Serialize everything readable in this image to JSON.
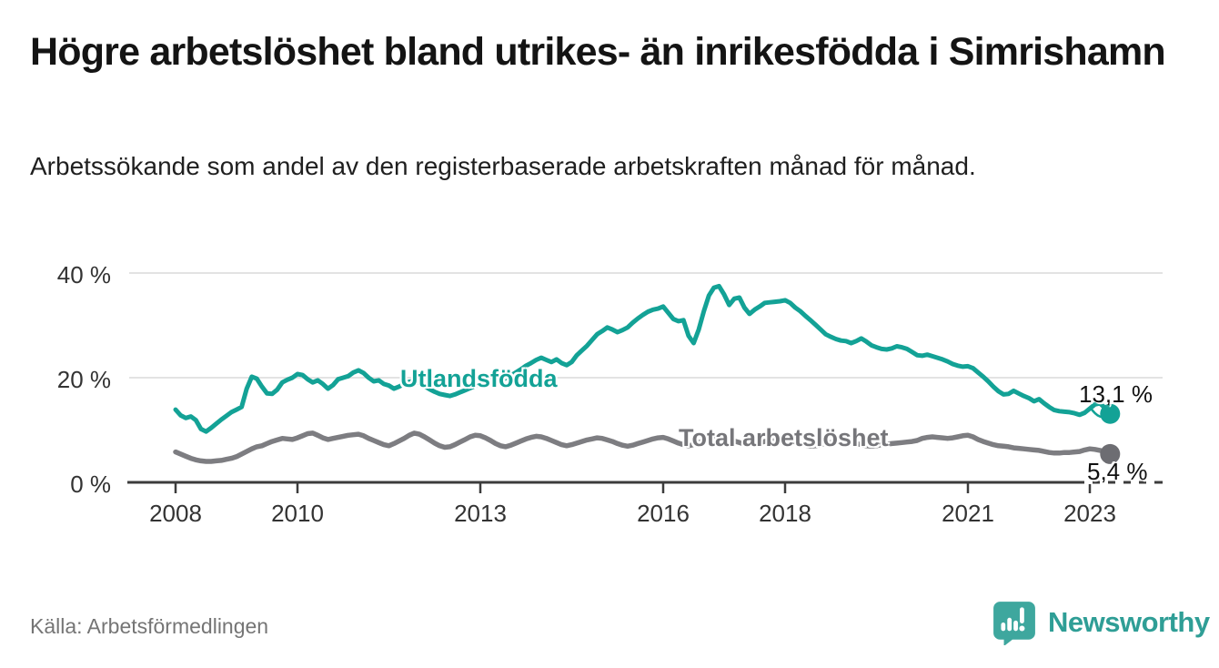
{
  "header": {
    "title": "Högre arbetslöshet bland utrikes- än inrikesfödda i Simrishamn",
    "subtitle": "Arbetssökande som andel av den registerbaserade arbetskraften månad för månad."
  },
  "labels": {
    "y_axis": [
      "40 %",
      "20 %",
      "0 %"
    ],
    "series_utlandsfodda": "Utlandsfödda",
    "series_total": "Total arbetslöshet",
    "end_value_utlandsfodda": "13,1 %",
    "end_value_total": "5,4 %"
  },
  "footer": {
    "source": "Källa: Arbetsförmedlingen",
    "brand": "Newsworthy"
  },
  "colors": {
    "accent_teal": "#13a296",
    "line_gray": "#7d7d81",
    "dot_gray": "#6d6d72",
    "grid": "#e3e3e3",
    "axis": "#3c3c3c",
    "logo_teal": "#3ea79e",
    "logo_text_teal": "#2f9e96"
  },
  "chart_data": {
    "type": "line",
    "title": "Högre arbetslöshet bland utrikes- än inrikesfödda i Simrishamn",
    "subtitle": "Arbetssökande som andel av den registerbaserade arbetskraften månad för månad.",
    "source": "Källa: Arbetsförmedlingen",
    "unit": "%",
    "frequency": "monthly",
    "x_start": "2008-01",
    "x_end": "2023-05",
    "x_ticks": [
      2008,
      2010,
      2013,
      2016,
      2018,
      2021,
      2023
    ],
    "y_ticks": [
      0,
      20,
      40
    ],
    "ylim": [
      0,
      43
    ],
    "grid": "horizontal",
    "legend_position": "inline-labels",
    "series": [
      {
        "name": "Utlandsfödda",
        "color": "#13a296",
        "end_label": "13,1 %",
        "end_value": 13.1,
        "values": [
          13.9,
          12.8,
          12.3,
          12.6,
          11.9,
          10.2,
          9.7,
          10.4,
          11.2,
          12.0,
          12.7,
          13.4,
          13.9,
          14.4,
          17.9,
          20.2,
          19.8,
          18.3,
          17.0,
          16.9,
          17.7,
          19.1,
          19.6,
          20.0,
          20.7,
          20.5,
          19.7,
          19.1,
          19.5,
          18.8,
          17.9,
          18.6,
          19.7,
          20.0,
          20.3,
          21.0,
          21.4,
          20.9,
          20.0,
          19.3,
          19.5,
          18.8,
          18.5,
          17.9,
          18.3,
          18.8,
          19.2,
          19.4,
          19.0,
          18.4,
          17.8,
          17.3,
          16.9,
          16.7,
          16.5,
          16.8,
          17.2,
          17.6,
          18.0,
          18.4,
          18.8,
          19.2,
          19.5,
          19.8,
          19.5,
          19.9,
          20.4,
          21.0,
          21.6,
          22.3,
          22.8,
          23.4,
          23.8,
          23.4,
          23.0,
          23.5,
          22.8,
          22.4,
          23.0,
          24.3,
          25.2,
          26.1,
          27.2,
          28.3,
          28.9,
          29.6,
          29.2,
          28.7,
          29.1,
          29.6,
          30.5,
          31.3,
          32.0,
          32.6,
          33.0,
          33.2,
          33.6,
          32.4,
          31.2,
          30.8,
          31.0,
          28.0,
          26.6,
          29.2,
          32.7,
          35.7,
          37.2,
          37.5,
          35.9,
          33.9,
          35.1,
          35.3,
          33.4,
          32.2,
          33.0,
          33.6,
          34.3,
          34.4,
          34.5,
          34.6,
          34.8,
          34.3,
          33.4,
          32.7,
          31.8,
          31.0,
          30.1,
          29.2,
          28.3,
          27.8,
          27.4,
          27.1,
          27.0,
          26.6,
          27.0,
          27.5,
          26.9,
          26.2,
          25.8,
          25.5,
          25.4,
          25.6,
          26.0,
          25.8,
          25.5,
          24.9,
          24.3,
          24.2,
          24.4,
          24.1,
          23.8,
          23.5,
          23.1,
          22.6,
          22.3,
          22.1,
          22.2,
          21.8,
          21.0,
          20.2,
          19.3,
          18.3,
          17.4,
          16.8,
          16.9,
          17.5,
          17.0,
          16.5,
          16.1,
          15.5,
          15.9,
          15.1,
          14.4,
          13.8,
          13.6,
          13.5,
          13.4,
          13.2,
          12.9,
          13.3,
          14.1,
          14.9,
          15.1,
          14.2,
          13.1
        ]
      },
      {
        "name": "Total arbetslöshet",
        "color": "#7d7d81",
        "end_label": "5,4 %",
        "end_value": 5.4,
        "values": [
          5.8,
          5.4,
          5.0,
          4.6,
          4.3,
          4.1,
          4.0,
          4.0,
          4.1,
          4.2,
          4.4,
          4.6,
          4.9,
          5.4,
          5.9,
          6.4,
          6.8,
          7.0,
          7.4,
          7.8,
          8.1,
          8.4,
          8.3,
          8.2,
          8.5,
          8.9,
          9.3,
          9.4,
          9.0,
          8.5,
          8.2,
          8.4,
          8.6,
          8.8,
          9.0,
          9.1,
          9.2,
          8.9,
          8.4,
          8.0,
          7.6,
          7.2,
          7.0,
          7.4,
          7.9,
          8.4,
          9.0,
          9.4,
          9.2,
          8.7,
          8.1,
          7.5,
          7.0,
          6.7,
          6.8,
          7.2,
          7.7,
          8.2,
          8.7,
          9.0,
          8.9,
          8.5,
          8.0,
          7.4,
          7.0,
          6.8,
          7.1,
          7.5,
          7.9,
          8.3,
          8.6,
          8.8,
          8.7,
          8.4,
          8.0,
          7.6,
          7.2,
          7.0,
          7.2,
          7.5,
          7.8,
          8.1,
          8.3,
          8.5,
          8.4,
          8.1,
          7.8,
          7.4,
          7.1,
          6.9,
          7.1,
          7.4,
          7.7,
          8.0,
          8.3,
          8.5,
          8.6,
          8.3,
          7.9,
          7.5,
          7.2,
          7.0,
          7.2,
          7.6,
          7.9,
          8.2,
          8.5,
          8.6,
          8.5,
          8.2,
          7.9,
          7.6,
          7.3,
          7.1,
          7.3,
          7.6,
          7.8,
          8.0,
          8.2,
          8.3,
          8.2,
          8.0,
          7.7,
          7.4,
          7.1,
          6.9,
          7.0,
          7.2,
          7.4,
          7.6,
          7.7,
          7.8,
          7.8,
          7.6,
          7.4,
          7.2,
          7.0,
          6.9,
          7.0,
          7.2,
          7.3,
          7.4,
          7.5,
          7.6,
          7.7,
          7.8,
          8.0,
          8.4,
          8.6,
          8.7,
          8.6,
          8.5,
          8.4,
          8.5,
          8.7,
          8.9,
          9.0,
          8.7,
          8.2,
          7.8,
          7.5,
          7.2,
          7.0,
          6.9,
          6.8,
          6.6,
          6.5,
          6.4,
          6.3,
          6.2,
          6.1,
          5.9,
          5.7,
          5.6,
          5.6,
          5.7,
          5.7,
          5.8,
          5.9,
          6.2,
          6.4,
          6.3,
          6.1,
          5.8,
          5.4
        ]
      }
    ]
  }
}
